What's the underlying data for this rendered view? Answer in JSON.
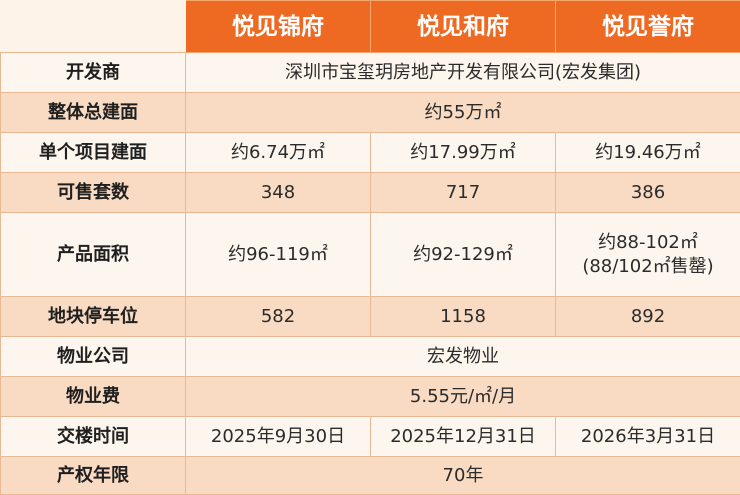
{
  "header": {
    "projects": [
      "悦见锦府",
      "悦见和府",
      "悦见誉府"
    ]
  },
  "rows": {
    "developer": {
      "label": "开发商",
      "value": "深圳市宝玺玥房地产开发有限公司(宏发集团)"
    },
    "total_area": {
      "label": "整体总建面",
      "value": "约55万㎡"
    },
    "project_area": {
      "label": "单个项目建面",
      "values": [
        "约6.74万㎡",
        "约17.99万㎡",
        "约19.46万㎡"
      ]
    },
    "units": {
      "label": "可售套数",
      "values": [
        "348",
        "717",
        "386"
      ]
    },
    "product_area": {
      "label": "产品面积",
      "values": [
        "约96-119㎡",
        "约92-129㎡",
        "约88-102㎡"
      ],
      "note3": "(88/102㎡售罄)"
    },
    "parking": {
      "label": "地块停车位",
      "values": [
        "582",
        "1158",
        "892"
      ]
    },
    "property_company": {
      "label": "物业公司",
      "value": "宏发物业"
    },
    "property_fee": {
      "label": "物业费",
      "value": "5.55元/㎡/月"
    },
    "delivery": {
      "label": "交楼时间",
      "values": [
        "2025年9月30日",
        "2025年12月31日",
        "2026年3月31日"
      ]
    },
    "tenure": {
      "label": "产权年限",
      "value": "70年"
    }
  }
}
